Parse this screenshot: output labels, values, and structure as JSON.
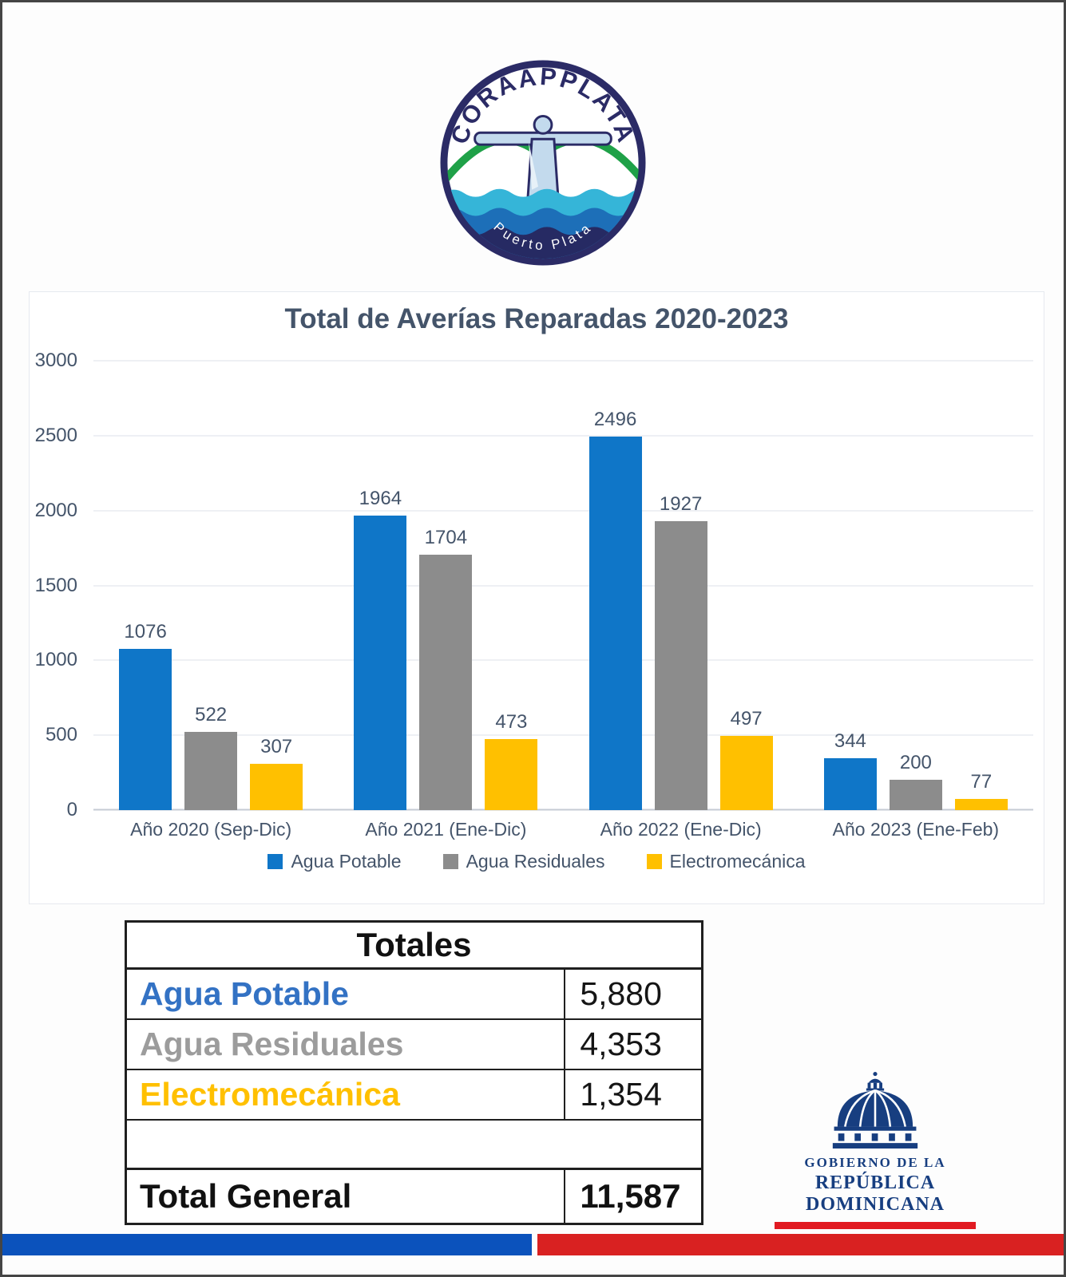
{
  "org_logo": {
    "brand": "CORAAPPLATA",
    "subtitle": "Puerto Plata",
    "ring_color": "#2b2b66",
    "green": "#1fa148",
    "wave_cyan": "#35b5d8",
    "wave_blue": "#1d6fb8",
    "wave_navy": "#262a63",
    "statue_fill": "#c3daed"
  },
  "chart_data": {
    "type": "bar",
    "title": "Total de Averías Reparadas 2020-2023",
    "categories": [
      "Año 2020 (Sep-Dic)",
      "Año 2021 (Ene-Dic)",
      "Año 2022 (Ene-Dic)",
      "Año 2023 (Ene-Feb)"
    ],
    "series": [
      {
        "name": "Agua Potable",
        "color": "#0f76c8",
        "values": [
          1076,
          1964,
          2496,
          344
        ]
      },
      {
        "name": "Agua Residuales",
        "color": "#8c8c8c",
        "values": [
          522,
          1704,
          1927,
          200
        ]
      },
      {
        "name": "Electromecánica",
        "color": "#ffc000",
        "values": [
          307,
          473,
          497,
          77
        ]
      }
    ],
    "xlabel": "",
    "ylabel": "",
    "ylim": [
      0,
      3000
    ],
    "ytick_step": 500,
    "grid": true,
    "legend_position": "bottom"
  },
  "totals_table": {
    "header": "Totales",
    "rows": [
      {
        "label": "Agua Potable",
        "value": "5,880",
        "color": "#3372c4"
      },
      {
        "label": "Agua Residuales",
        "value": "4,353",
        "color": "#9c9c9c"
      },
      {
        "label": "Electromecánica",
        "value": "1,354",
        "color": "#ffc000"
      }
    ],
    "total_label": "Total General",
    "total_value": "11,587"
  },
  "gov_logo": {
    "line1": "GOBIERNO DE LA",
    "line2": "REPÚBLICA DOMINICANA",
    "navy": "#173e80",
    "red": "#e11b22"
  },
  "footer": {
    "blue": "#0b52bc",
    "red": "#d92121"
  }
}
